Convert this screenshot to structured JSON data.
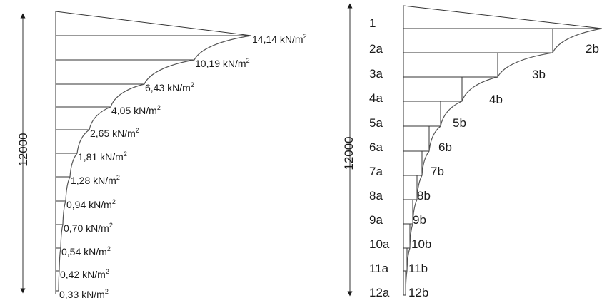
{
  "left_diagram": {
    "dimension_label": "12000",
    "unit": "kN/m",
    "unit_exponent": "2",
    "values": [
      "14,14",
      "10,19",
      "6,43",
      "4,05",
      "2,65",
      "1,81",
      "1,28",
      "0,94",
      "0,70",
      "0,54",
      "0,42",
      "0,33"
    ]
  },
  "right_diagram": {
    "dimension_label": "12000",
    "row_labels": [
      "1",
      "2a",
      "3a",
      "4a",
      "5a",
      "6a",
      "7a",
      "8a",
      "9a",
      "10a",
      "11a",
      "12a"
    ],
    "curve_labels": [
      "2b",
      "3b",
      "4b",
      "5b",
      "6b",
      "7b",
      "8b",
      "9b",
      "10b",
      "11b",
      "12b"
    ]
  }
}
